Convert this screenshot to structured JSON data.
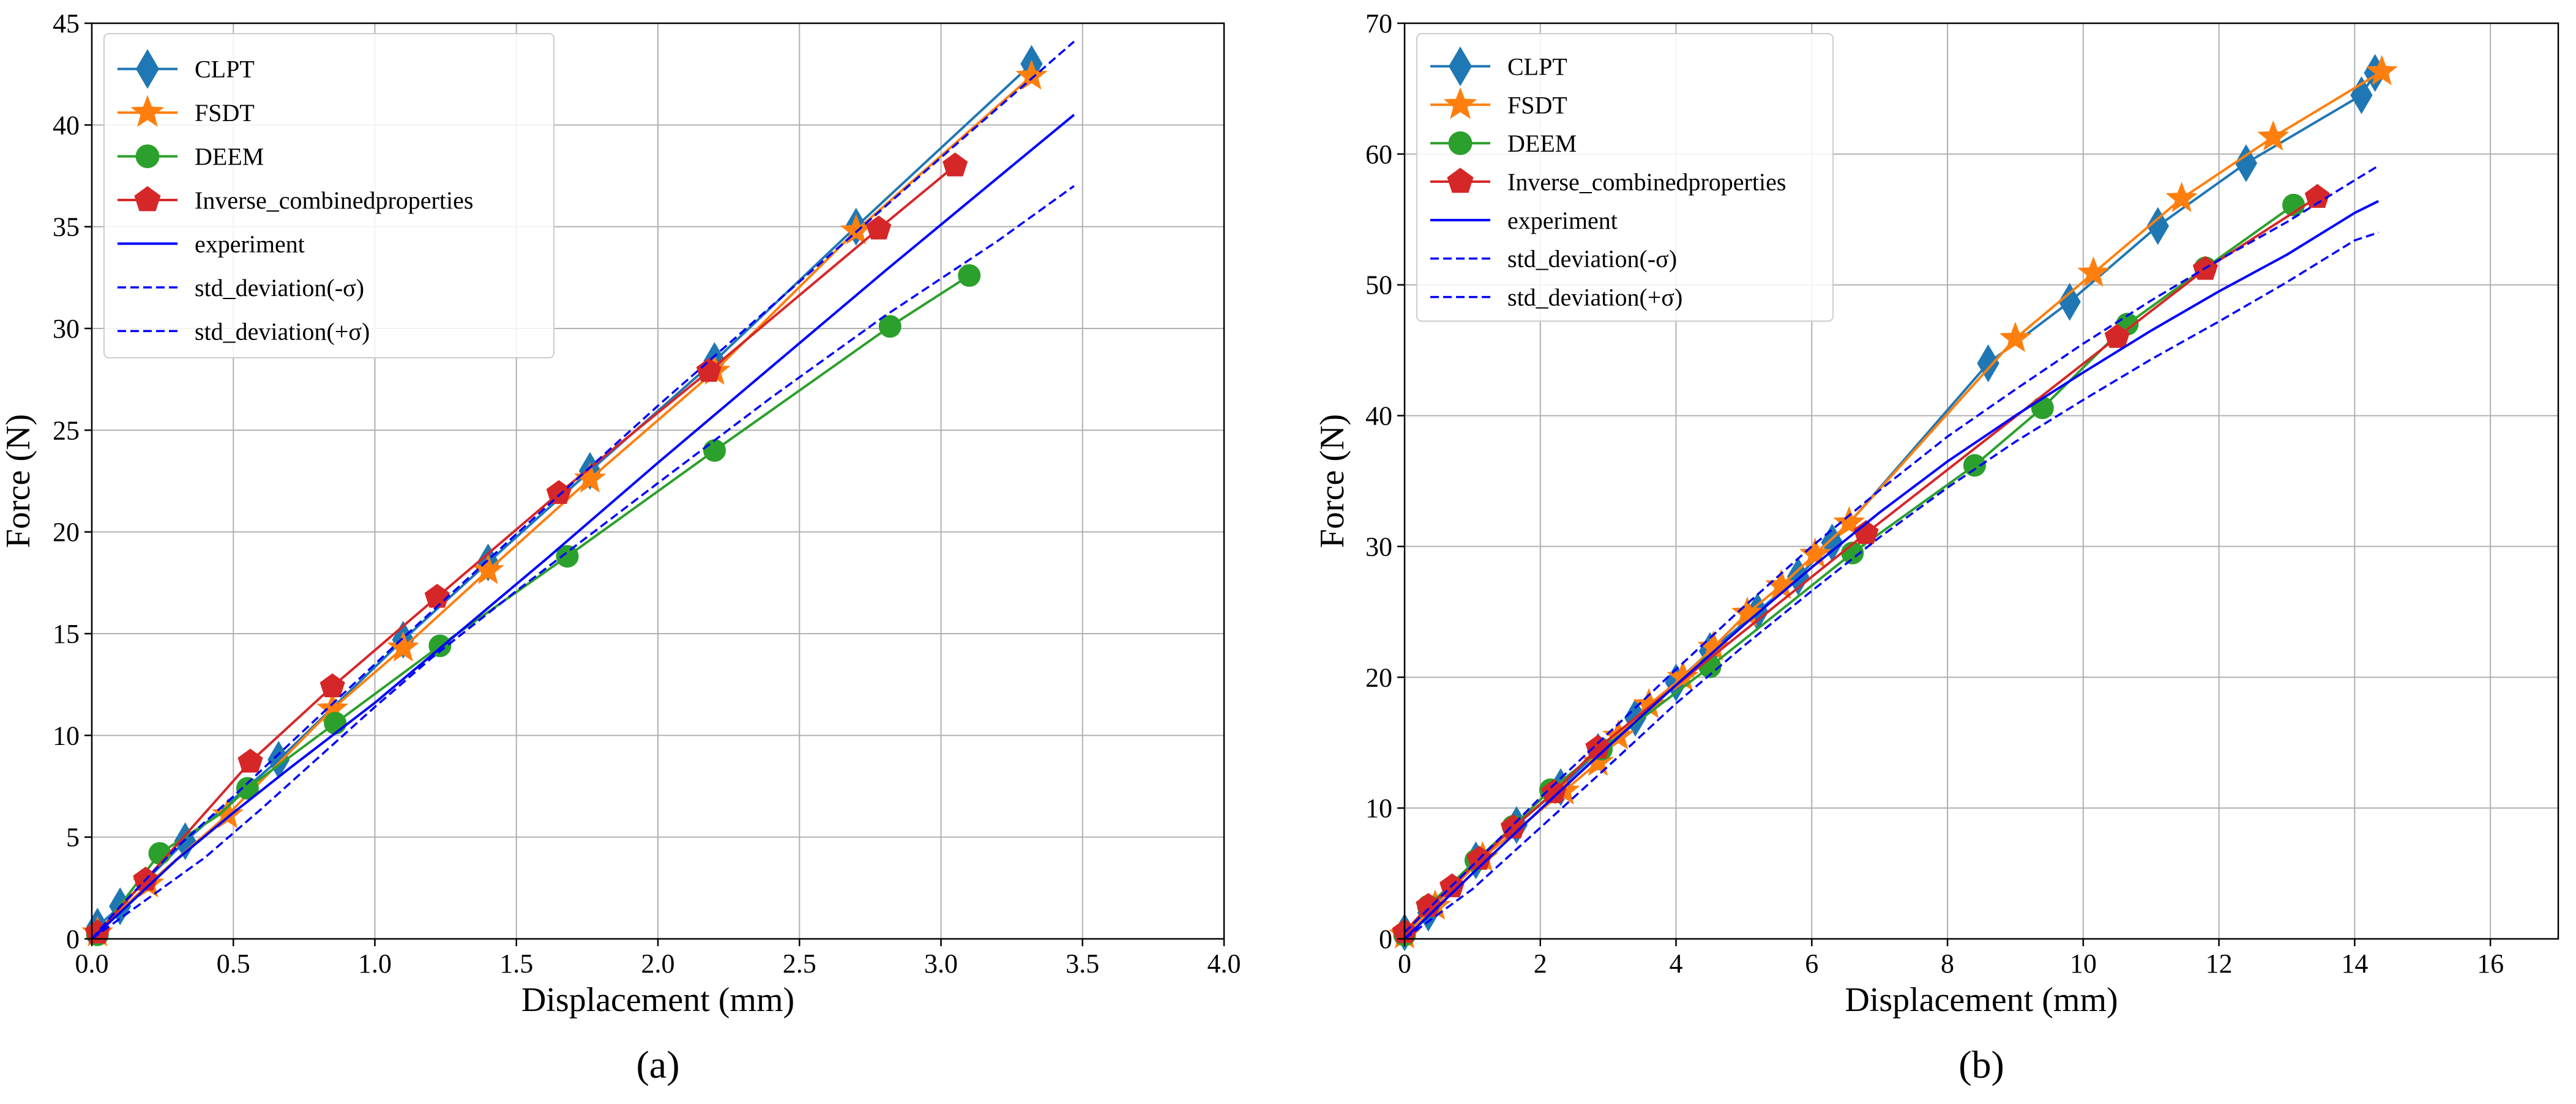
{
  "colors": {
    "CLPT": "#1f77b4",
    "FSDT": "#ff7f0e",
    "DEEM": "#2ca02c",
    "Inverse": "#d62728",
    "experiment": "#0000ff"
  },
  "chart_data": [
    {
      "type": "line",
      "panel_label": "(a)",
      "xlabel": "Displacement (mm)",
      "ylabel": "Force (N)",
      "xlim": [
        0,
        4.0
      ],
      "ylim": [
        0,
        45
      ],
      "xticks": [
        0.0,
        0.5,
        1.0,
        1.5,
        2.0,
        2.5,
        3.0,
        3.5,
        4.0
      ],
      "xtick_labels": [
        "0.0",
        "0.5",
        "1.0",
        "1.5",
        "2.0",
        "2.5",
        "3.0",
        "3.5",
        "4.0"
      ],
      "yticks": [
        0,
        5,
        10,
        15,
        20,
        25,
        30,
        35,
        40,
        45
      ],
      "ytick_labels": [
        "0",
        "5",
        "10",
        "15",
        "20",
        "25",
        "30",
        "35",
        "40",
        "45"
      ],
      "grid": true,
      "legend_position": "top-left",
      "series": [
        {
          "name": "CLPT",
          "color_key": "CLPT",
          "marker": "diamond",
          "line": "solid",
          "x": [
            0.02,
            0.1,
            0.33,
            0.66,
            1.1,
            1.4,
            1.76,
            2.2,
            2.7,
            3.32
          ],
          "y": [
            0.6,
            1.6,
            4.8,
            8.8,
            14.7,
            18.5,
            23.0,
            28.4,
            35.0,
            43.0
          ]
        },
        {
          "name": "FSDT",
          "color_key": "FSDT",
          "marker": "star",
          "line": "solid",
          "x": [
            0.02,
            0.2,
            0.48,
            0.85,
            1.1,
            1.4,
            1.76,
            2.2,
            2.7,
            3.32
          ],
          "y": [
            0.3,
            2.7,
            6.1,
            11.3,
            14.3,
            18.1,
            22.6,
            27.9,
            34.8,
            42.4
          ]
        },
        {
          "name": "DEEM",
          "color_key": "DEEM",
          "marker": "circle",
          "line": "solid",
          "x": [
            0.02,
            0.24,
            0.55,
            0.86,
            1.23,
            1.68,
            2.2,
            2.82,
            3.1
          ],
          "y": [
            0.2,
            4.2,
            7.4,
            10.6,
            14.4,
            18.8,
            24.0,
            30.1,
            32.6
          ],
          "line_x": [
            0.02,
            0.24,
            0.45,
            0.55,
            0.86,
            1.23,
            1.68,
            2.2,
            2.82,
            3.1
          ],
          "line_y": [
            0.2,
            4.2,
            6.1,
            7.4,
            10.6,
            14.4,
            18.8,
            24.0,
            30.1,
            32.6
          ]
        },
        {
          "name": "Inverse_combinedproperties",
          "color_key": "Inverse",
          "marker": "pentagon",
          "line": "solid",
          "x": [
            0.02,
            0.19,
            0.56,
            0.85,
            1.22,
            1.65,
            2.18,
            2.78,
            3.05
          ],
          "y": [
            0.3,
            2.9,
            8.7,
            12.4,
            16.8,
            21.9,
            27.9,
            34.9,
            38.0
          ]
        },
        {
          "name": "experiment",
          "color_key": "experiment",
          "marker": "none",
          "line": "solid",
          "x": [
            0.0,
            0.1,
            0.3,
            0.5,
            0.7,
            1.0,
            1.3,
            1.6,
            2.0,
            2.4,
            2.8,
            3.2,
            3.47
          ],
          "y": [
            0.0,
            1.3,
            3.9,
            6.2,
            8.4,
            11.6,
            15.1,
            18.6,
            23.4,
            28.1,
            32.8,
            37.4,
            40.5
          ]
        },
        {
          "name": "std_deviation(-σ)",
          "color_key": "experiment",
          "marker": "none",
          "line": "dashed",
          "x": [
            0.0,
            0.2,
            0.4,
            0.6,
            0.8,
            1.0,
            1.2,
            1.5,
            2.0,
            2.4,
            2.8,
            3.2,
            3.47
          ],
          "y": [
            0.0,
            2.0,
            4.0,
            6.4,
            8.9,
            11.4,
            13.8,
            17.1,
            22.4,
            26.6,
            30.6,
            34.3,
            37.0
          ]
        },
        {
          "name": "std_deviation(+σ)",
          "color_key": "experiment",
          "marker": "none",
          "line": "dashed",
          "x": [
            0.0,
            0.1,
            0.3,
            0.5,
            0.8,
            1.1,
            1.5,
            2.0,
            2.5,
            3.0,
            3.47
          ],
          "y": [
            0.0,
            1.6,
            4.5,
            7.0,
            10.9,
            14.8,
            19.9,
            26.2,
            32.3,
            38.4,
            44.1
          ]
        }
      ]
    },
    {
      "type": "line",
      "panel_label": "(b)",
      "xlabel": "Displacement (mm)",
      "ylabel": "Force (N)",
      "xlim": [
        0,
        17
      ],
      "ylim": [
        0,
        70
      ],
      "xticks": [
        0,
        2,
        4,
        6,
        8,
        10,
        12,
        14,
        16
      ],
      "xtick_labels": [
        "0",
        "2",
        "4",
        "6",
        "8",
        "10",
        "12",
        "14",
        "16"
      ],
      "yticks": [
        0,
        10,
        20,
        30,
        40,
        50,
        60,
        70
      ],
      "ytick_labels": [
        "0",
        "10",
        "20",
        "30",
        "40",
        "50",
        "60",
        "70"
      ],
      "grid": true,
      "legend_position": "top-left",
      "series": [
        {
          "name": "CLPT",
          "color_key": "CLPT",
          "marker": "diamond",
          "line": "solid",
          "x": [
            0.0,
            0.35,
            1.05,
            1.65,
            2.3,
            2.85,
            3.4,
            4.0,
            4.5,
            5.2,
            5.8,
            6.3,
            8.6,
            9.8,
            11.1,
            12.4,
            14.1,
            14.3
          ],
          "y": [
            0.5,
            2.0,
            6.0,
            8.7,
            11.6,
            14.3,
            16.9,
            19.6,
            22.0,
            25.0,
            27.7,
            30.3,
            44.0,
            48.7,
            54.5,
            59.3,
            64.5,
            66.2
          ]
        },
        {
          "name": "FSDT",
          "color_key": "FSDT",
          "marker": "star",
          "line": "solid",
          "x": [
            0.0,
            0.45,
            1.15,
            2.35,
            2.85,
            3.15,
            3.6,
            4.1,
            4.55,
            5.05,
            5.55,
            6.05,
            6.55,
            9.0,
            10.15,
            11.45,
            12.8,
            14.4
          ],
          "y": [
            0.3,
            2.5,
            6.2,
            11.3,
            13.5,
            15.5,
            17.9,
            20.0,
            22.3,
            24.9,
            27.0,
            29.4,
            31.8,
            45.9,
            50.9,
            56.6,
            61.3,
            66.3
          ]
        },
        {
          "name": "DEEM",
          "color_key": "DEEM",
          "marker": "circle",
          "line": "solid",
          "x": [
            0.0,
            0.35,
            1.05,
            1.6,
            2.15,
            2.9,
            4.5,
            6.6,
            8.4,
            9.4,
            10.65,
            11.8,
            13.1
          ],
          "y": [
            0.3,
            2.5,
            6.0,
            8.6,
            11.4,
            14.5,
            20.8,
            29.5,
            36.2,
            40.6,
            47.0,
            51.3,
            56.1
          ]
        },
        {
          "name": "Inverse_combinedproperties",
          "color_key": "Inverse",
          "marker": "pentagon",
          "line": "solid",
          "x": [
            0.0,
            0.35,
            0.7,
            1.1,
            1.6,
            2.2,
            2.85,
            6.8,
            10.5,
            11.8,
            13.45
          ],
          "y": [
            0.5,
            2.5,
            4.0,
            6.1,
            8.5,
            11.2,
            14.6,
            31.0,
            46.0,
            51.2,
            56.7
          ]
        },
        {
          "name": "experiment",
          "color_key": "experiment",
          "marker": "none",
          "line": "solid",
          "x": [
            0.0,
            1.0,
            2.0,
            3.0,
            4.0,
            5.0,
            6.0,
            7.0,
            8.0,
            9.0,
            10.0,
            11.0,
            12.0,
            13.0,
            14.0,
            14.35
          ],
          "y": [
            0.0,
            5.0,
            9.9,
            14.7,
            19.4,
            24.0,
            28.4,
            32.6,
            36.5,
            40.0,
            43.3,
            46.5,
            49.5,
            52.3,
            55.5,
            56.4
          ]
        },
        {
          "name": "std_deviation(-σ)",
          "color_key": "experiment",
          "marker": "none",
          "line": "dashed",
          "x": [
            0.0,
            1.0,
            2.0,
            3.0,
            4.0,
            5.0,
            6.0,
            7.0,
            8.0,
            9.0,
            10.0,
            11.0,
            12.0,
            13.0,
            14.0,
            14.35
          ],
          "y": [
            0.5,
            5.6,
            10.8,
            15.7,
            20.6,
            25.4,
            30.0,
            34.3,
            38.4,
            42.0,
            45.5,
            48.8,
            51.9,
            54.8,
            58.0,
            59.1
          ]
        },
        {
          "name": "std_deviation(+σ)",
          "color_key": "experiment",
          "marker": "none",
          "line": "dashed",
          "x": [
            0.0,
            1.0,
            2.0,
            3.0,
            4.0,
            5.0,
            6.0,
            7.0,
            8.0,
            9.0,
            10.0,
            11.0,
            12.0,
            13.0,
            14.0,
            14.35
          ],
          "y": [
            0.0,
            3.8,
            8.5,
            13.2,
            18.0,
            22.4,
            26.6,
            30.7,
            34.5,
            38.0,
            41.2,
            44.3,
            47.2,
            50.2,
            53.4,
            54.0
          ]
        }
      ]
    }
  ]
}
